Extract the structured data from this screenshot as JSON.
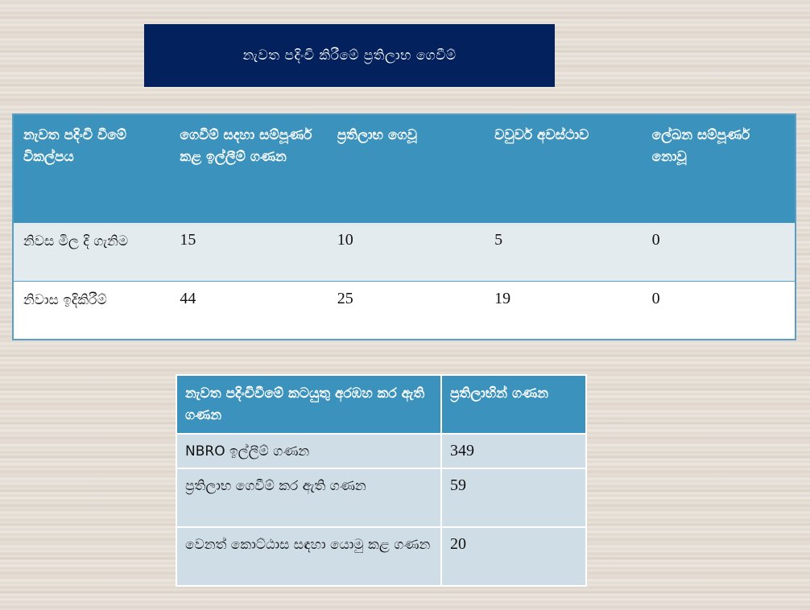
{
  "title": "නැවත පදිංචි කිරීමේ ප්‍රතිලාභ ගෙවීම්",
  "table1": {
    "headers": [
      "නැවත පදිංචි වීමේ විකල්පය",
      "ගෙවීම් සදහා සම්පූර්ණ කළ ඉල්ලීම් ගණන",
      "ප්‍රතිලාභ ගෙවූ",
      "වවුවර් අවස්ථාව",
      "ලේඛන සම්පූර්ණ නොවූ"
    ],
    "rows": [
      [
        "නිවස මිල දි ගැනිම",
        "15",
        "10",
        "5",
        "0"
      ],
      [
        "නිවාස ඉදිකිරීම්",
        "44",
        "25",
        "19",
        "0"
      ]
    ]
  },
  "table2": {
    "headers": [
      "නැවත පදිංචිවීමේ කටයුතු අරඹහ කර ඇති ගණන",
      "ප්‍රතිලාභින් ගණන"
    ],
    "rows": [
      [
        "NBRO ඉල්ලීම් ගණන",
        "349"
      ],
      [
        "ප්‍රතිලාභ ගෙවීම් කර ඇති ගණන",
        "59"
      ],
      [
        "වෙනත් කොට්ඨාස සඳහා යොමු කළ ගණන",
        "20"
      ]
    ]
  },
  "colors": {
    "title_bg": "#03215c",
    "header_bg": "#3b92bd",
    "row_light": "#e4ebef",
    "table2_cell": "#cfdde6"
  }
}
